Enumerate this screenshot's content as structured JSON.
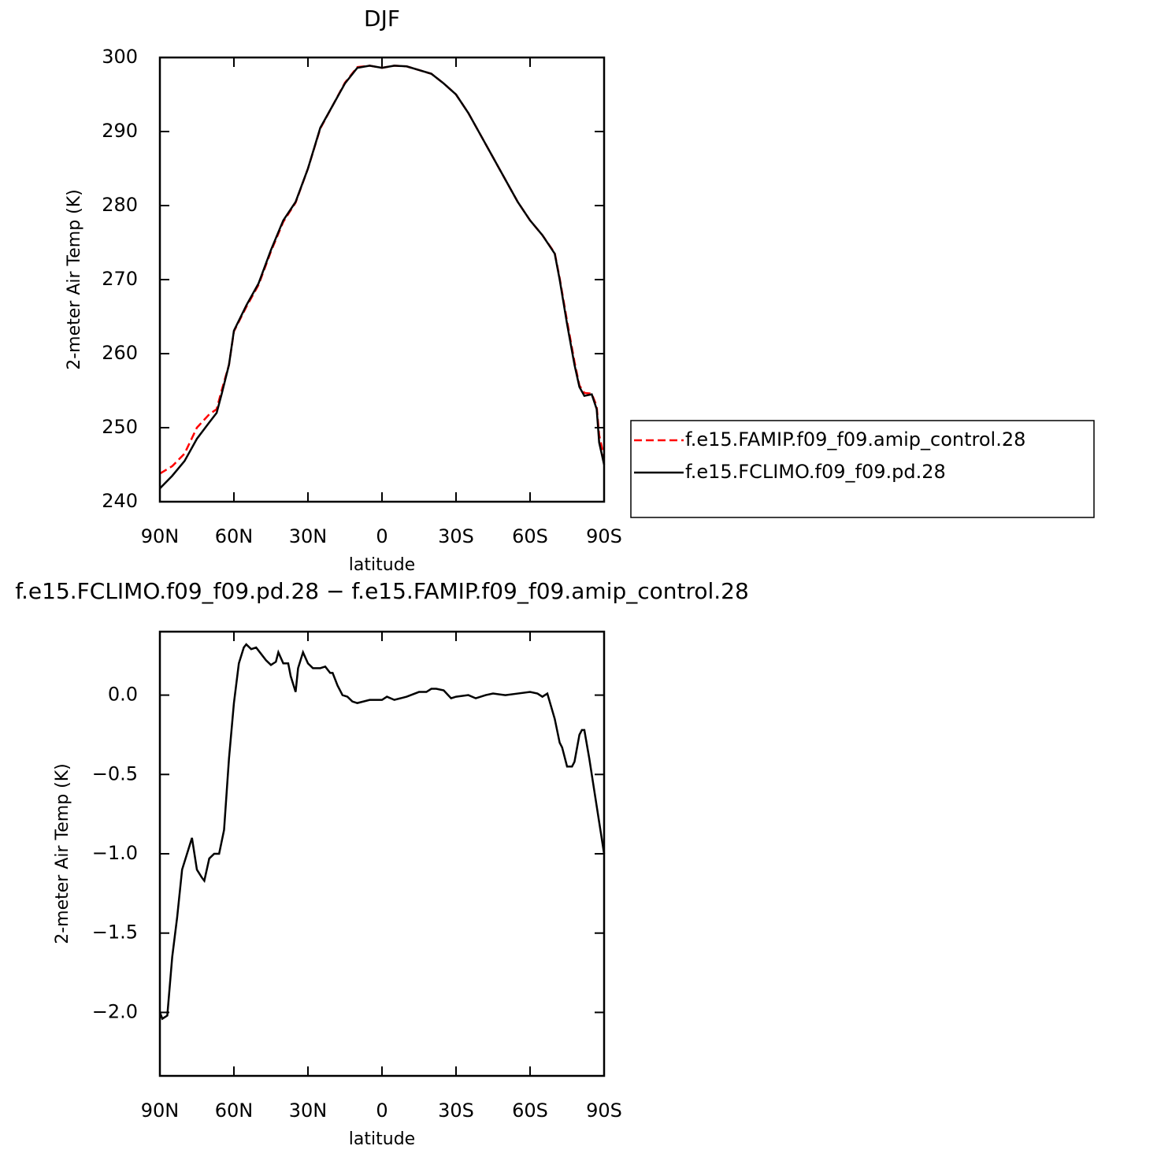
{
  "chart_data": [
    {
      "type": "line",
      "title": "DJF",
      "x_label": "latitude",
      "y_label": "2-meter Air Temp (K)",
      "x": [
        90,
        85,
        80,
        75,
        70,
        67,
        65,
        62,
        60,
        55,
        50,
        45,
        40,
        35,
        30,
        25,
        20,
        15,
        10,
        5,
        0,
        -5,
        -10,
        -15,
        -20,
        -25,
        -30,
        -35,
        -40,
        -45,
        -50,
        -55,
        -60,
        -65,
        -70,
        -72,
        -75,
        -78,
        -80,
        -82,
        -85,
        -87,
        -88,
        -90
      ],
      "series": [
        {
          "name": "f.e15.FAMIP.f09_f09.amip_control.28",
          "color": "#ff0000",
          "line_style": "dashed",
          "values": [
            243.8,
            244.8,
            246.5,
            250,
            251.8,
            252.5,
            255,
            258.5,
            263,
            266.3,
            269.3,
            273.8,
            277.8,
            280.4,
            285,
            290.4,
            293.5,
            296.6,
            298.7,
            298.9,
            298.6,
            298.9,
            298.8,
            298.3,
            297.8,
            296.5,
            295,
            292.5,
            289.5,
            286.5,
            283.5,
            280.5,
            278,
            276,
            273.6,
            270.2,
            264.4,
            258.9,
            255.7,
            254.7,
            254.6,
            252.9,
            249,
            246
          ]
        },
        {
          "name": "f.e15.FCLIMO.f09_f09.pd.28",
          "color": "#000000",
          "line_style": "solid",
          "values": [
            241.8,
            243.5,
            245.5,
            248.5,
            250.7,
            252,
            254.5,
            258.5,
            263.1,
            266.5,
            269.5,
            274,
            278,
            280.5,
            285,
            290.5,
            293.5,
            296.5,
            298.6,
            298.9,
            298.6,
            298.9,
            298.8,
            298.3,
            297.8,
            296.5,
            295,
            292.5,
            289.5,
            286.5,
            283.5,
            280.5,
            278,
            276,
            273.5,
            270,
            264,
            258.5,
            255.5,
            254.3,
            254.5,
            252.5,
            248,
            245
          ]
        }
      ],
      "xlim": [
        90,
        -90
      ],
      "xticks": [
        {
          "value": 90,
          "label": "90N"
        },
        {
          "value": 60,
          "label": "60N"
        },
        {
          "value": 30,
          "label": "30N"
        },
        0,
        {
          "value": -30,
          "label": "30S"
        },
        {
          "value": -60,
          "label": "60S"
        },
        {
          "value": -90,
          "label": "90S"
        }
      ],
      "ylim": [
        240,
        300
      ],
      "yticks": [
        240,
        250,
        260,
        270,
        280,
        290,
        300
      ],
      "legend": "right"
    },
    {
      "type": "line",
      "title": "f.e15.FCLIMO.f09_f09.pd.28 − f.e15.FAMIP.f09_f09.amip_control.28",
      "x_label": "latitude",
      "y_label": "2-meter Air Temp (K)",
      "x": [
        90,
        89,
        87,
        85,
        83,
        81,
        79,
        77,
        75,
        73,
        72,
        70,
        68,
        66,
        64,
        62,
        60,
        58,
        56,
        55,
        53,
        51,
        49,
        47,
        45,
        43,
        42,
        40,
        38,
        37,
        35,
        34,
        32,
        30,
        28,
        25,
        23,
        21,
        20,
        18,
        16,
        14,
        12,
        10,
        5,
        0,
        -2,
        -5,
        -10,
        -15,
        -18,
        -20,
        -22,
        -25,
        -28,
        -30,
        -35,
        -38,
        -42,
        -45,
        -50,
        -55,
        -60,
        -63,
        -65,
        -67,
        -70,
        -72,
        -73,
        -75,
        -77,
        -78,
        -80,
        -81,
        -82,
        -84,
        -86,
        -88,
        -90
      ],
      "color": "#000000",
      "values": [
        -2.0,
        -2.04,
        -2.02,
        -1.65,
        -1.4,
        -1.1,
        -1.0,
        -0.9,
        -1.1,
        -1.15,
        -1.17,
        -1.03,
        -1.0,
        -1.0,
        -0.85,
        -0.4,
        -0.05,
        0.2,
        0.3,
        0.32,
        0.29,
        0.3,
        0.26,
        0.22,
        0.19,
        0.21,
        0.27,
        0.2,
        0.2,
        0.12,
        0.02,
        0.17,
        0.27,
        0.2,
        0.17,
        0.17,
        0.18,
        0.14,
        0.14,
        0.06,
        0.0,
        -0.01,
        -0.04,
        -0.05,
        -0.03,
        -0.03,
        -0.01,
        -0.03,
        -0.01,
        0.02,
        0.02,
        0.04,
        0.04,
        0.03,
        -0.02,
        -0.01,
        0.0,
        -0.02,
        0.0,
        0.01,
        0.0,
        0.01,
        0.02,
        0.01,
        -0.01,
        0.01,
        -0.15,
        -0.3,
        -0.33,
        -0.45,
        -0.45,
        -0.42,
        -0.25,
        -0.22,
        -0.22,
        -0.4,
        -0.6,
        -0.8,
        -1.0
      ],
      "xlim": [
        90,
        -90
      ],
      "xticks": [
        {
          "value": 90,
          "label": "90N"
        },
        {
          "value": 60,
          "label": "60N"
        },
        {
          "value": 30,
          "label": "30N"
        },
        0,
        {
          "value": -30,
          "label": "30S"
        },
        {
          "value": -60,
          "label": "60S"
        },
        {
          "value": -90,
          "label": "90S"
        }
      ],
      "ylim": [
        -2.4,
        0.4
      ],
      "yticks": [
        {
          "value": 0,
          "label": "0.0"
        },
        {
          "value": -0.5,
          "label": "−0.5"
        },
        {
          "value": -1,
          "label": "−1.0"
        },
        {
          "value": -1.5,
          "label": "−1.5"
        },
        {
          "value": -2,
          "label": "−2.0"
        }
      ]
    }
  ]
}
